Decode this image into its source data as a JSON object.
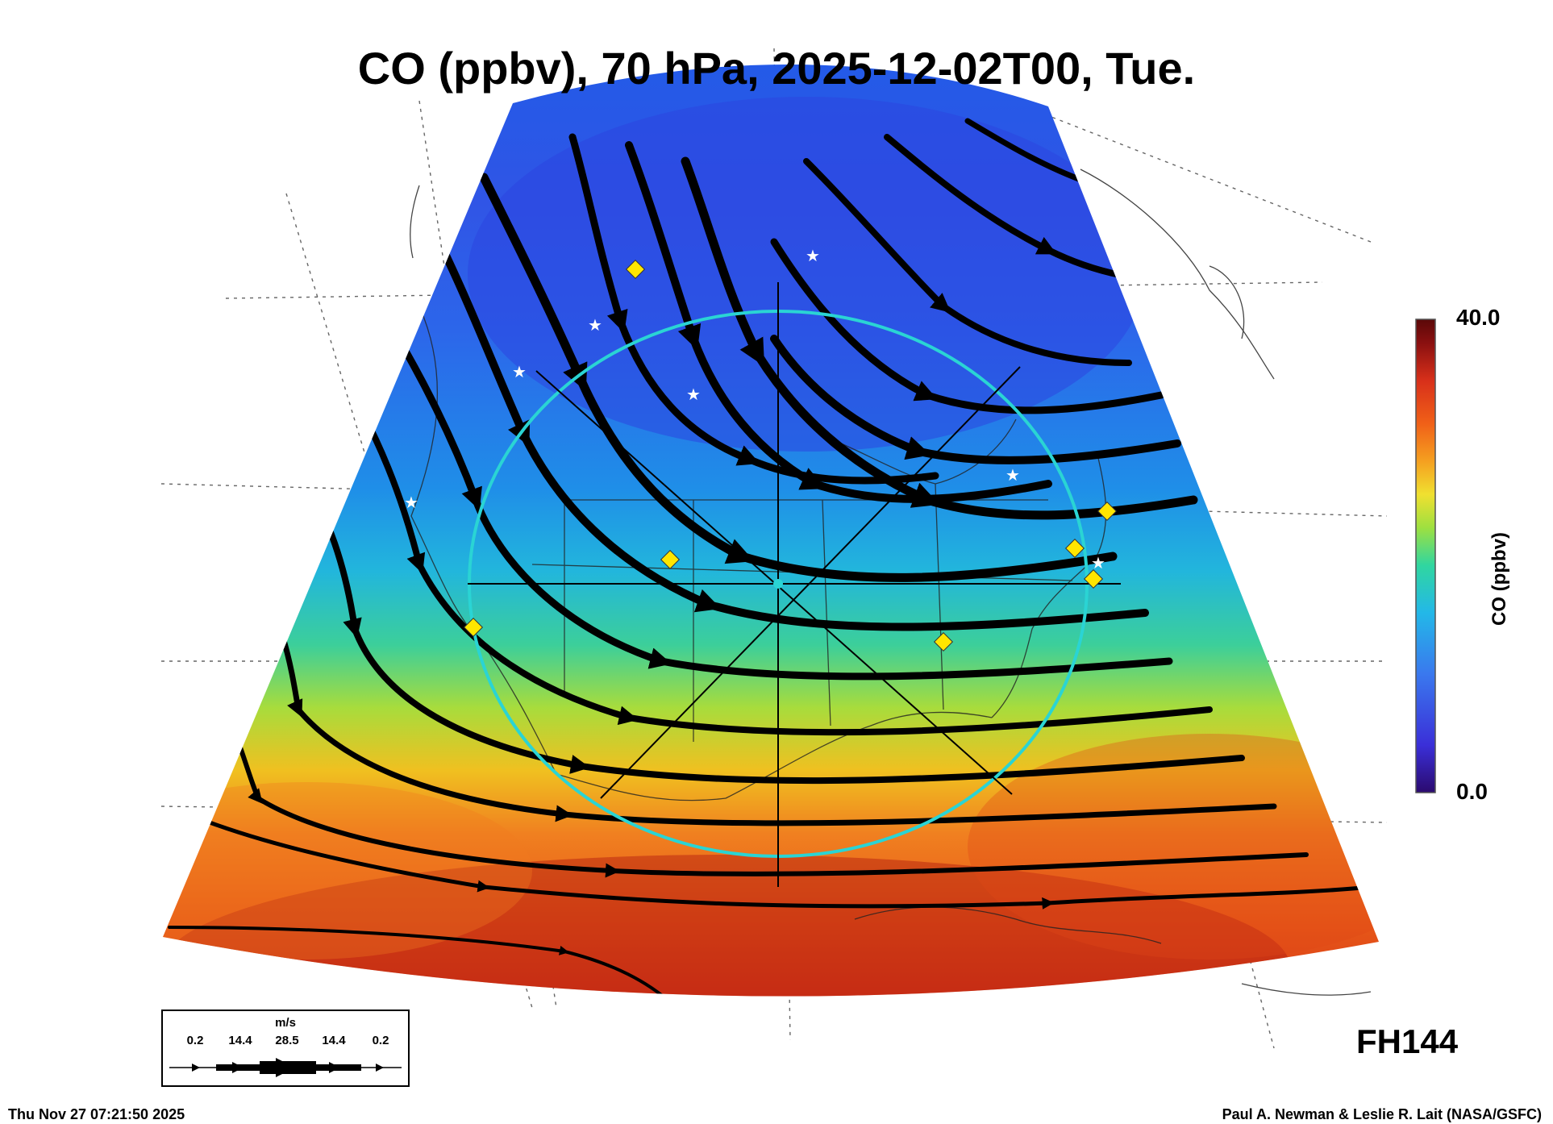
{
  "title": "CO (ppbv), 70 hPa, 2025-12-02T00, Tue.",
  "colorbar": {
    "label": "CO (ppbv)",
    "max_label": "40.0",
    "min_label": "0.0",
    "min": 0.0,
    "max": 40.0,
    "colors": [
      "#2b0a6e",
      "#3a2fd8",
      "#3a78ee",
      "#23b8e8",
      "#30d6a0",
      "#9ee040",
      "#f0e030",
      "#f5a020",
      "#f06018",
      "#d8301a",
      "#8a1010",
      "#5a0808"
    ]
  },
  "forecast_label": "FH144",
  "legend": {
    "units": "m/s",
    "values": [
      "0.2",
      "14.4",
      "28.5",
      "14.4",
      "0.2"
    ]
  },
  "timestamp": "Thu Nov 27 07:21:50 2025",
  "credit": "Paul A. Newman & Leslie R. Lait (NASA/GSFC)"
}
